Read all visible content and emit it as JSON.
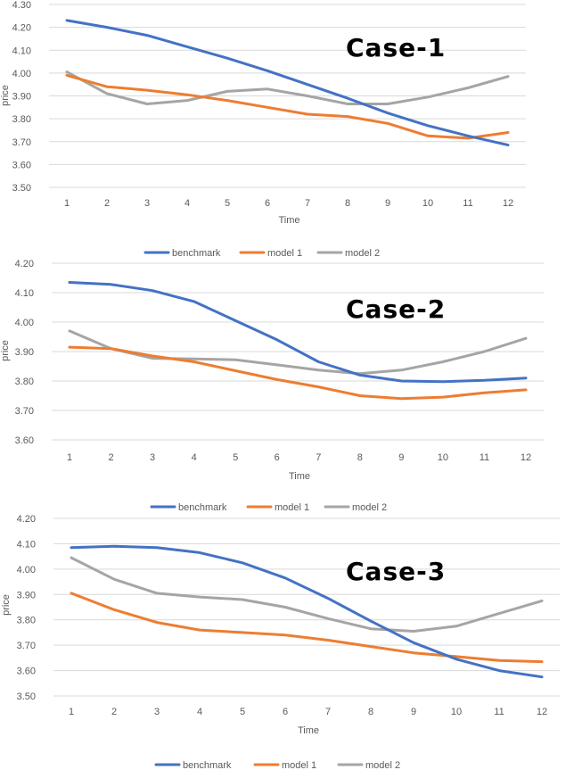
{
  "chart_data": [
    {
      "type": "line",
      "title": "Case-1",
      "xlabel": "Time",
      "ylabel": "price",
      "categories": [
        1,
        2,
        3,
        4,
        5,
        6,
        7,
        8,
        9,
        10,
        11,
        12
      ],
      "yticks": [
        "3.50",
        "3.60",
        "3.70",
        "3.80",
        "3.90",
        "4.00",
        "4.10",
        "4.20",
        "4.30"
      ],
      "ylim": [
        3.5,
        4.3
      ],
      "legend_position": "bottom",
      "series": [
        {
          "name": "benchmark",
          "color": "#4472C4",
          "values": [
            4.23,
            4.2,
            4.165,
            4.115,
            4.065,
            4.01,
            3.95,
            3.89,
            3.825,
            3.77,
            3.725,
            3.685
          ]
        },
        {
          "name": "model 1",
          "color": "#ED7D31",
          "values": [
            3.99,
            3.94,
            3.925,
            3.905,
            3.88,
            3.85,
            3.82,
            3.81,
            3.78,
            3.725,
            3.715,
            3.74
          ]
        },
        {
          "name": "model 2",
          "color": "#A5A5A5",
          "values": [
            4.005,
            3.91,
            3.865,
            3.88,
            3.92,
            3.93,
            3.9,
            3.865,
            3.865,
            3.895,
            3.935,
            3.985
          ]
        }
      ]
    },
    {
      "type": "line",
      "title": "Case-2",
      "xlabel": "Time",
      "ylabel": "price",
      "categories": [
        1,
        2,
        3,
        4,
        5,
        6,
        7,
        8,
        9,
        10,
        11,
        12
      ],
      "yticks": [
        "3.60",
        "3.70",
        "3.80",
        "3.90",
        "4.00",
        "4.10",
        "4.20"
      ],
      "ylim": [
        3.6,
        4.2
      ],
      "legend_position": "bottom",
      "series": [
        {
          "name": "benchmark",
          "color": "#4472C4",
          "values": [
            4.135,
            4.128,
            4.107,
            4.07,
            4.005,
            3.94,
            3.865,
            3.82,
            3.8,
            3.798,
            3.802,
            3.81
          ]
        },
        {
          "name": "model 1",
          "color": "#ED7D31",
          "values": [
            3.915,
            3.91,
            3.885,
            3.865,
            3.835,
            3.805,
            3.78,
            3.75,
            3.74,
            3.745,
            3.76,
            3.77
          ]
        },
        {
          "name": "model 2",
          "color": "#A5A5A5",
          "values": [
            3.97,
            3.91,
            3.877,
            3.875,
            3.872,
            3.855,
            3.837,
            3.825,
            3.837,
            3.865,
            3.9,
            3.945
          ]
        }
      ]
    },
    {
      "type": "line",
      "title": "Case-3",
      "xlabel": "Time",
      "ylabel": "price",
      "categories": [
        1,
        2,
        3,
        4,
        5,
        6,
        7,
        8,
        9,
        10,
        11,
        12
      ],
      "yticks": [
        "3.50",
        "3.60",
        "3.70",
        "3.80",
        "3.90",
        "4.00",
        "4.10",
        "4.20"
      ],
      "ylim": [
        3.5,
        4.2
      ],
      "legend_position": "bottom",
      "series": [
        {
          "name": "benchmark",
          "color": "#4472C4",
          "values": [
            4.085,
            4.09,
            4.085,
            4.065,
            4.025,
            3.965,
            3.885,
            3.795,
            3.71,
            3.645,
            3.6,
            3.575
          ]
        },
        {
          "name": "model 1",
          "color": "#ED7D31",
          "values": [
            3.905,
            3.84,
            3.79,
            3.76,
            3.75,
            3.74,
            3.72,
            3.695,
            3.67,
            3.655,
            3.64,
            3.635
          ]
        },
        {
          "name": "model 2",
          "color": "#A5A5A5",
          "values": [
            4.045,
            3.96,
            3.905,
            3.89,
            3.88,
            3.85,
            3.805,
            3.765,
            3.755,
            3.775,
            3.825,
            3.875
          ]
        }
      ]
    }
  ]
}
